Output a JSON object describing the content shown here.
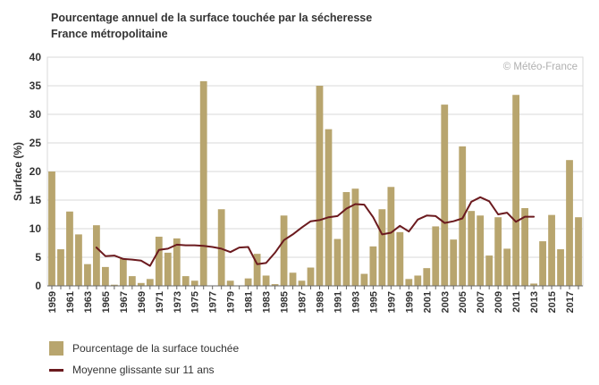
{
  "title": "Pourcentage annuel de la surface touchée par la sécheresse",
  "subtitle": "France métropolitaine",
  "credit": "© Météo-France",
  "colors": {
    "bar": "#b8a56e",
    "line": "#6b1a1e",
    "grid": "#d9d9d9",
    "axis": "#666666"
  },
  "legend": {
    "bars_label": "Pourcentage de la surface touchée",
    "line_label": "Moyenne glissante sur 11 ans"
  },
  "chart_data": {
    "type": "bar",
    "title": "Pourcentage annuel de la surface touchée par la sécheresse",
    "subtitle": "France métropolitaine",
    "xlabel": "",
    "ylabel": "Surface (%)",
    "ylim": [
      0,
      40
    ],
    "yticks": [
      0,
      5,
      10,
      15,
      20,
      25,
      30,
      35,
      40
    ],
    "grid": true,
    "categories": [
      1959,
      1960,
      1961,
      1962,
      1963,
      1964,
      1965,
      1966,
      1967,
      1968,
      1969,
      1970,
      1971,
      1972,
      1973,
      1974,
      1975,
      1976,
      1977,
      1978,
      1979,
      1980,
      1981,
      1982,
      1983,
      1984,
      1985,
      1986,
      1987,
      1988,
      1989,
      1990,
      1991,
      1992,
      1993,
      1994,
      1995,
      1996,
      1997,
      1998,
      1999,
      2000,
      2001,
      2002,
      2003,
      2004,
      2005,
      2006,
      2007,
      2008,
      2009,
      2010,
      2011,
      2012,
      2013,
      2014,
      2015,
      2016,
      2017,
      2018
    ],
    "tick_labels": [
      "1959",
      "1961",
      "1963",
      "1965",
      "1967",
      "1969",
      "1971",
      "1973",
      "1975",
      "1977",
      "1979",
      "1981",
      "1983",
      "1985",
      "1987",
      "1989",
      "1991",
      "1993",
      "1995",
      "1997",
      "1999",
      "2001",
      "2003",
      "2005",
      "2007",
      "2009",
      "2011",
      "2013",
      "2015",
      "2017"
    ],
    "series": [
      {
        "name": "Pourcentage de la surface touchée",
        "type": "bar",
        "values": [
          20,
          6.4,
          13,
          9,
          3.8,
          10.6,
          3.3,
          0.2,
          4.7,
          1.7,
          0.5,
          1.2,
          8.6,
          5.8,
          8.3,
          1.7,
          0.9,
          35.8,
          0,
          13.4,
          0.9,
          0,
          1.3,
          5.6,
          1.8,
          0.3,
          12.3,
          2.3,
          0.9,
          3.2,
          35,
          27.4,
          8.2,
          16.4,
          17,
          2.1,
          6.9,
          13.4,
          17.3,
          9.4,
          1.2,
          1.8,
          3.1,
          10.4,
          31.7,
          8.1,
          24.4,
          13.1,
          12.3,
          5.3,
          12,
          6.5,
          33.4,
          13.6,
          0.4,
          7.8,
          12.4,
          6.4,
          22,
          12
        ]
      },
      {
        "name": "Moyenne glissante sur 11 ans",
        "type": "line",
        "x": [
          1964,
          1965,
          1966,
          1967,
          1968,
          1969,
          1970,
          1971,
          1972,
          1973,
          1974,
          1975,
          1976,
          1977,
          1978,
          1979,
          1980,
          1981,
          1982,
          1983,
          1984,
          1985,
          1986,
          1987,
          1988,
          1989,
          1990,
          1991,
          1992,
          1993,
          1994,
          1995,
          1996,
          1997,
          1998,
          1999,
          2000,
          2001,
          2002,
          2003,
          2004,
          2005,
          2006,
          2007,
          2008,
          2009,
          2010,
          2011,
          2012,
          2013
        ],
        "values": [
          6.7,
          5.2,
          5.3,
          4.7,
          4.6,
          4.4,
          3.5,
          6.3,
          6.5,
          7.2,
          7.1,
          7.1,
          7.0,
          6.8,
          6.5,
          5.9,
          6.7,
          6.8,
          3.8,
          4.0,
          5.8,
          8.0,
          9.0,
          10.2,
          11.3,
          11.5,
          12.0,
          12.2,
          13.5,
          14.3,
          14.2,
          12.0,
          9.0,
          9.3,
          10.5,
          9.5,
          11.6,
          12.3,
          12.2,
          11.0,
          11.3,
          11.8,
          14.7,
          15.5,
          14.8,
          12.5,
          12.8,
          11.2,
          12.1,
          12.1
        ]
      }
    ],
    "legend_position": "bottom-left"
  }
}
